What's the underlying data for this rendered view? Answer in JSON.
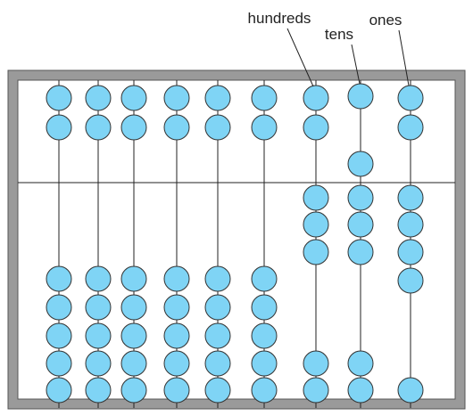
{
  "labels": {
    "hundreds": "hundreds",
    "tens": "tens",
    "ones": "ones"
  }
}
